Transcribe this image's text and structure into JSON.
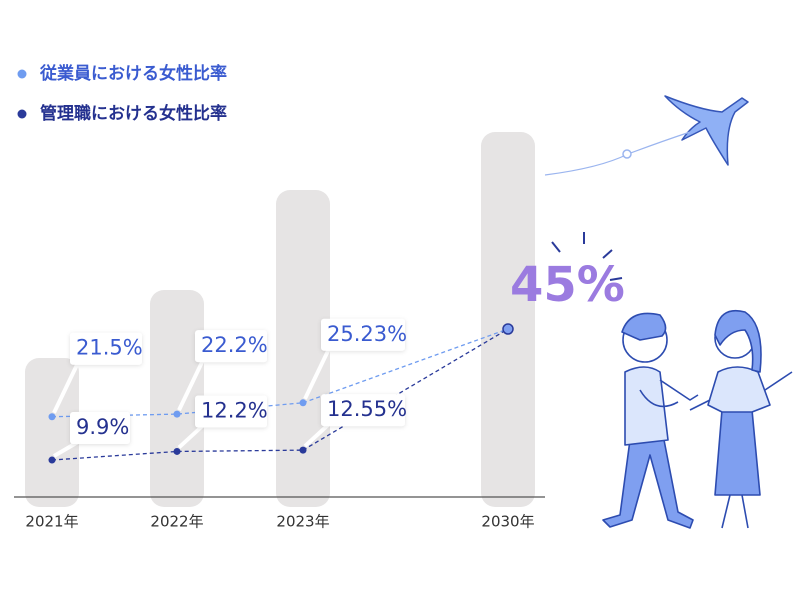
{
  "chart_data": {
    "type": "line",
    "categories": [
      "2021年",
      "2022年",
      "2023年",
      "2030年"
    ],
    "series": [
      {
        "name": "従業員における女性比率",
        "color": "#6f9cf0",
        "values": [
          21.5,
          22.2,
          25.23,
          null
        ],
        "value_labels": [
          "21.5%",
          "22.2%",
          "25.23%",
          null
        ]
      },
      {
        "name": "管理職における女性比率",
        "color": "#2a3a9a",
        "values": [
          9.9,
          12.2,
          12.55,
          null
        ],
        "value_labels": [
          "9.9%",
          "12.2%",
          "12.55%",
          null
        ]
      }
    ],
    "target": {
      "value": 45,
      "label": "45%",
      "color": "#9b7be0"
    },
    "ylim": [
      0,
      60
    ]
  }
}
